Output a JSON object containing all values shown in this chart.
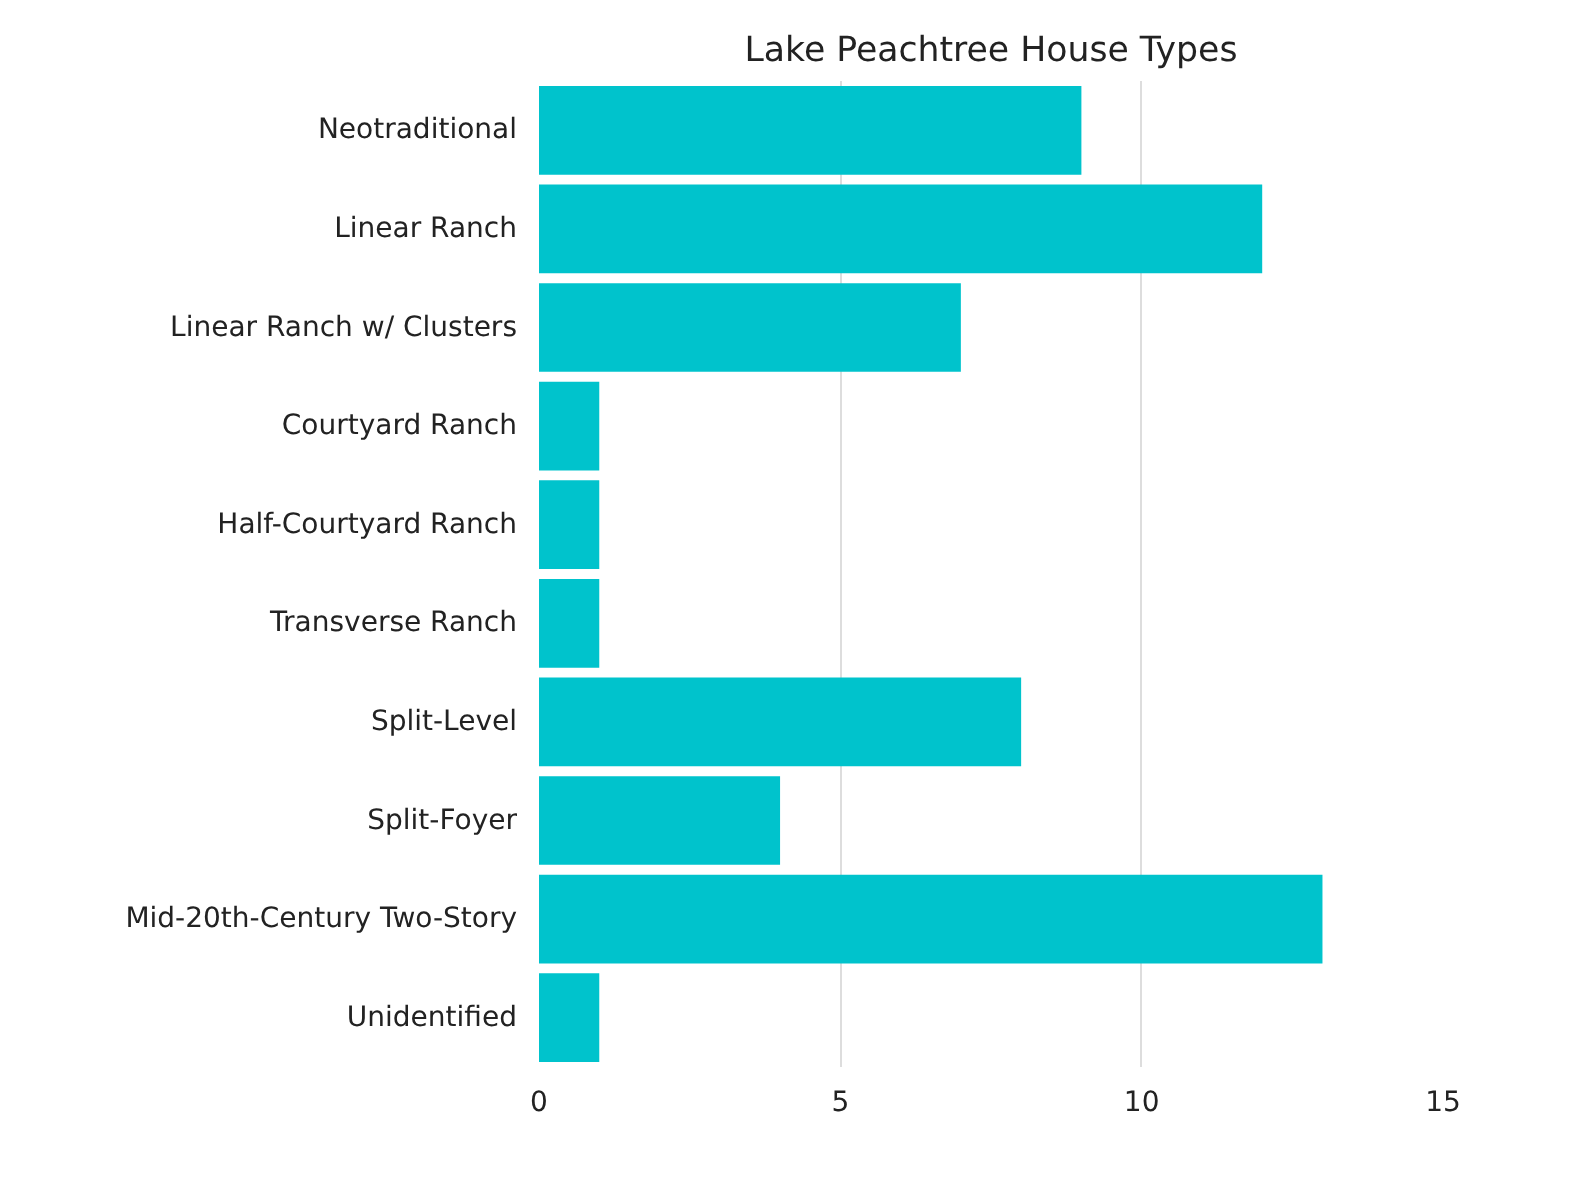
{
  "chart_data": {
    "type": "bar",
    "orientation": "horizontal",
    "title": "Lake Peachtree House Types",
    "categories": [
      "Neotraditional",
      "Linear Ranch",
      "Linear Ranch w/ Clusters",
      "Courtyard Ranch",
      "Half-Courtyard Ranch",
      "Transverse Ranch",
      "Split-Level",
      "Split-Foyer",
      "Mid-20th-Century Two-Story",
      "Unidentified"
    ],
    "values": [
      9,
      12,
      7,
      1,
      1,
      1,
      8,
      4,
      13,
      1
    ],
    "color": "#00c3cc",
    "xlim": [
      0,
      15
    ],
    "xticks": [
      0,
      5,
      10,
      15
    ],
    "grid": "x"
  }
}
